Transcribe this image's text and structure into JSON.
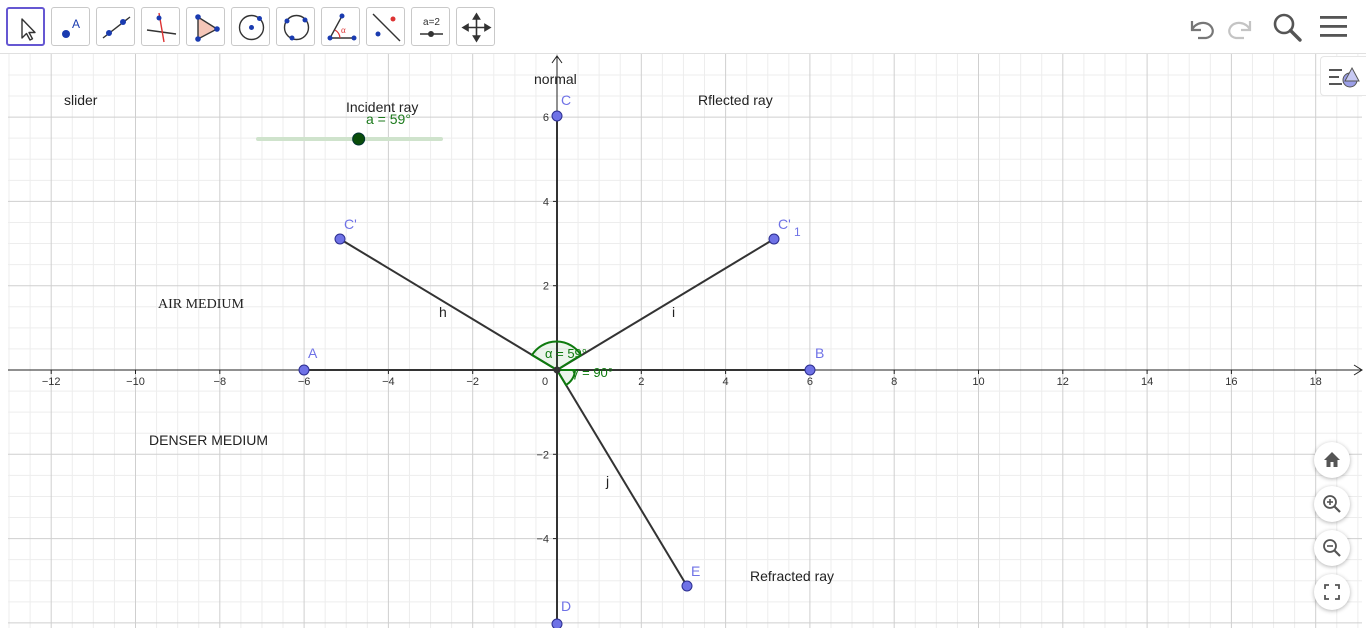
{
  "toolbar": {
    "tools": [
      "move",
      "point",
      "line",
      "perpendicular-line",
      "polygon",
      "circle-center-point",
      "circle-three-points",
      "angle",
      "reflect-about-line",
      "slider",
      "move-graphics-view"
    ],
    "slider_tool_text": "a=2",
    "point_tool_text": "A",
    "right_icons": [
      "undo-icon",
      "redo-icon",
      "search-icon",
      "menu-icon"
    ]
  },
  "graphics": {
    "x_ticks": [
      "−12",
      "−10",
      "−8",
      "−6",
      "−4",
      "−2",
      "0",
      "2",
      "4",
      "6",
      "8",
      "10",
      "12",
      "14",
      "16",
      "18"
    ],
    "y_ticks": [
      "6",
      "4",
      "2",
      "−2",
      "−4"
    ],
    "labels": {
      "slider": "slider",
      "incident_ray": "Incident ray",
      "reflected_ray": "Rflected ray",
      "normal": "normal",
      "air_medium": "AIR MEDIUM",
      "denser_medium": "DENSER MEDIUM",
      "refracted_ray": "Refracted ray"
    },
    "slider_value": "a = 59°",
    "slider_fraction": 0.55,
    "points": {
      "A": "A",
      "B": "B",
      "C": "C",
      "D": "D",
      "E": "E",
      "C_prime": "C'",
      "C1_main": "C'",
      "C1_sub": "1"
    },
    "segments": {
      "h": "h",
      "i": "i",
      "j": "j"
    },
    "angle_label_1": "α = 59°",
    "angle_label_2": "γ = 90°",
    "colors": {
      "point": "#6f72e6",
      "segment": "#333333",
      "angle": "#0e7a0e",
      "slider_track": "#cfe3cc",
      "slider_knob": "#0a4d0a",
      "grid_major": "#cfcfcf",
      "grid_minor": "#ededed"
    }
  },
  "side_buttons": [
    "home-icon",
    "zoom-in-icon",
    "zoom-out-icon",
    "fullscreen-icon"
  ]
}
